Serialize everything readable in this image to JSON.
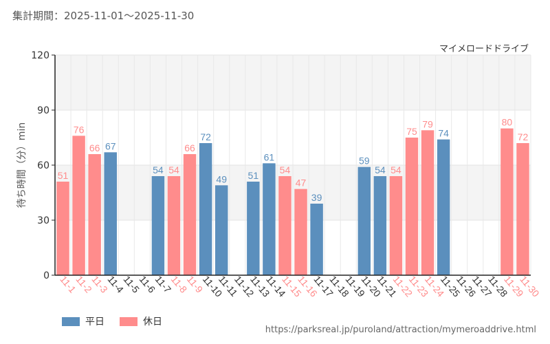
{
  "header": {
    "period": "集計期間：2025-11-01～2025-11-30",
    "attraction": "マイメロードドライブ"
  },
  "colors": {
    "weekday": "#5b8fbd",
    "holiday": "#ff8c8c"
  },
  "legend": {
    "weekday": "平日",
    "holiday": "休日"
  },
  "source_url": "https://parksreal.jp/puroland/attraction/mymeroaddrive.html",
  "chart_data": {
    "type": "bar",
    "title": "マイメロードドライブ",
    "ylabel": "待ち時間（分）min",
    "xlabel": "",
    "ylim": [
      0,
      120
    ],
    "yticks": [
      0,
      30,
      60,
      90,
      120
    ],
    "categories": [
      "11-1",
      "11-2",
      "11-3",
      "11-4",
      "11-5",
      "11-6",
      "11-7",
      "11-8",
      "11-9",
      "11-10",
      "11-11",
      "11-12",
      "11-13",
      "11-14",
      "11-15",
      "11-16",
      "11-17",
      "11-18",
      "11-19",
      "11-20",
      "11-21",
      "11-22",
      "11-23",
      "11-24",
      "11-25",
      "11-26",
      "11-27",
      "11-28",
      "11-29",
      "11-30"
    ],
    "values": [
      51,
      76,
      66,
      67,
      null,
      null,
      54,
      54,
      66,
      72,
      49,
      null,
      51,
      61,
      54,
      47,
      39,
      null,
      null,
      59,
      54,
      54,
      75,
      79,
      74,
      null,
      null,
      null,
      80,
      72
    ],
    "day_type": [
      "holiday",
      "holiday",
      "holiday",
      "weekday",
      "weekday",
      "weekday",
      "weekday",
      "holiday",
      "holiday",
      "weekday",
      "weekday",
      "weekday",
      "weekday",
      "weekday",
      "holiday",
      "holiday",
      "weekday",
      "weekday",
      "weekday",
      "weekday",
      "weekday",
      "holiday",
      "holiday",
      "holiday",
      "weekday",
      "weekday",
      "weekday",
      "weekday",
      "holiday",
      "holiday"
    ],
    "series": [
      {
        "name": "平日",
        "key": "weekday"
      },
      {
        "name": "休日",
        "key": "holiday"
      }
    ]
  }
}
